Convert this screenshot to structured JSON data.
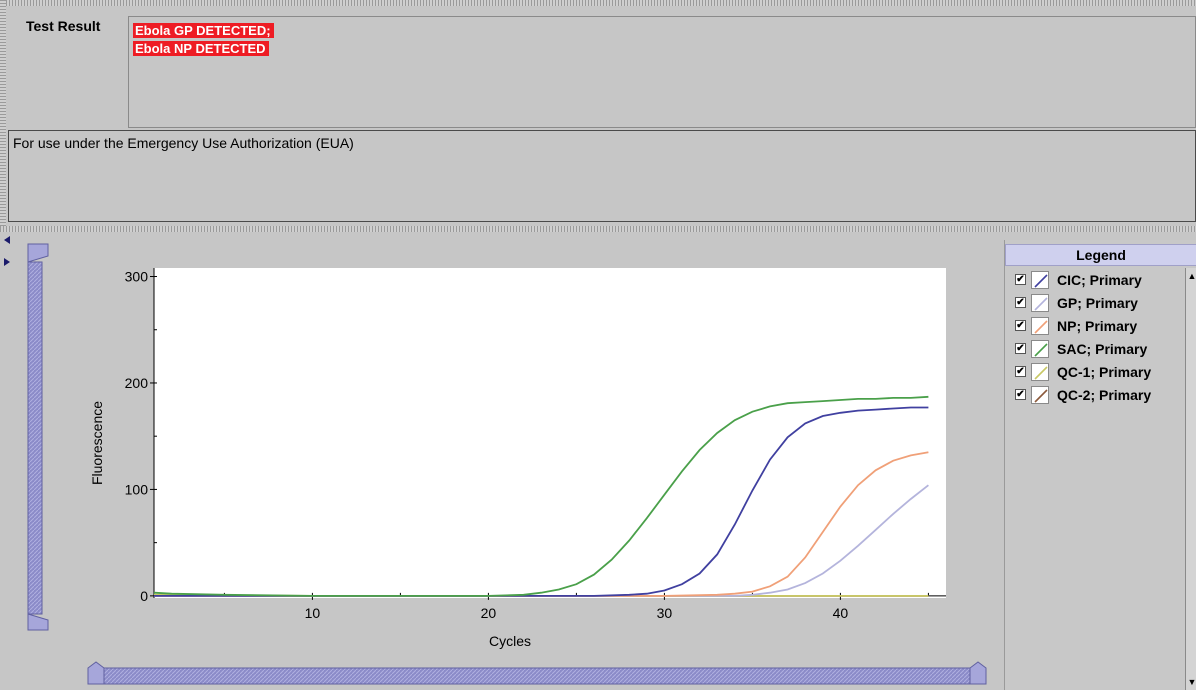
{
  "test_result": {
    "label": "Test Result",
    "lines": [
      "Ebola GP DETECTED;",
      "Ebola NP DETECTED"
    ],
    "highlight_color": "#ee1c24"
  },
  "note": {
    "text": "For use under the Emergency Use Authorization (EUA)"
  },
  "legend": {
    "title": "Legend",
    "items": [
      {
        "label": "CIC; Primary",
        "color": "#4040a0",
        "checked": true
      },
      {
        "label": "GP; Primary",
        "color": "#b4b4dc",
        "checked": true
      },
      {
        "label": "NP; Primary",
        "color": "#f0a078",
        "checked": true
      },
      {
        "label": "SAC; Primary",
        "color": "#4aa04a",
        "checked": true
      },
      {
        "label": "QC-1; Primary",
        "color": "#c8c864",
        "checked": true
      },
      {
        "label": "QC-2; Primary",
        "color": "#8c5a3c",
        "checked": true
      }
    ]
  },
  "icons": {
    "checkbox": "check-mark",
    "scroll_up": "arrow-up",
    "scroll_down": "arrow-down",
    "splitter": "triangle-arrows"
  },
  "chart_data": {
    "type": "line",
    "xlabel": "Cycles",
    "ylabel": "Fluorescence",
    "xlim": [
      1,
      46
    ],
    "ylim": [
      -2,
      308
    ],
    "xticks": [
      10,
      20,
      30,
      40
    ],
    "yticks": [
      0,
      100,
      200,
      300
    ],
    "grid": false,
    "legend_placement": "right panel",
    "series": [
      {
        "name": "SAC; Primary",
        "color": "#4aa04a",
        "x": [
          1,
          2,
          5,
          10,
          15,
          20,
          22,
          23,
          24,
          25,
          26,
          27,
          28,
          29,
          30,
          31,
          32,
          33,
          34,
          35,
          36,
          37,
          38,
          39,
          40,
          41,
          42,
          43,
          44,
          45
        ],
        "y": [
          3,
          2,
          1,
          0,
          0,
          0,
          1,
          3,
          6,
          11,
          20,
          34,
          52,
          73,
          95,
          117,
          137,
          153,
          165,
          173,
          178,
          181,
          182,
          183,
          184,
          185,
          185,
          186,
          186,
          187
        ]
      },
      {
        "name": "CIC; Primary",
        "color": "#4040a0",
        "x": [
          1,
          5,
          10,
          20,
          26,
          28,
          29,
          30,
          31,
          32,
          33,
          34,
          35,
          36,
          37,
          38,
          39,
          40,
          41,
          42,
          43,
          44,
          45
        ],
        "y": [
          0,
          0,
          0,
          0,
          0,
          1,
          2,
          5,
          11,
          21,
          39,
          67,
          99,
          128,
          149,
          162,
          169,
          172,
          174,
          175,
          176,
          177,
          177
        ]
      },
      {
        "name": "NP; Primary",
        "color": "#f0a078",
        "x": [
          1,
          10,
          20,
          30,
          33,
          34,
          35,
          36,
          37,
          38,
          39,
          40,
          41,
          42,
          43,
          44,
          45
        ],
        "y": [
          0,
          0,
          0,
          0,
          1,
          2,
          4,
          9,
          18,
          36,
          60,
          84,
          104,
          118,
          127,
          132,
          135
        ]
      },
      {
        "name": "GP; Primary",
        "color": "#b4b4dc",
        "x": [
          1,
          10,
          20,
          30,
          34,
          35,
          36,
          37,
          38,
          39,
          40,
          41,
          42,
          43,
          44,
          45
        ],
        "y": [
          0,
          0,
          0,
          0,
          0,
          1,
          3,
          6,
          12,
          21,
          33,
          47,
          62,
          77,
          91,
          104
        ]
      },
      {
        "name": "QC-1; Primary",
        "color": "#c8c864",
        "x": [
          1,
          10,
          20,
          30,
          40,
          45
        ],
        "y": [
          1,
          0,
          0,
          0,
          0,
          0
        ]
      },
      {
        "name": "QC-2; Primary",
        "color": "#8c5a3c",
        "x": [
          1,
          10,
          20,
          30,
          40,
          45
        ],
        "y": [
          0,
          0,
          0,
          0,
          0,
          0
        ]
      }
    ]
  }
}
